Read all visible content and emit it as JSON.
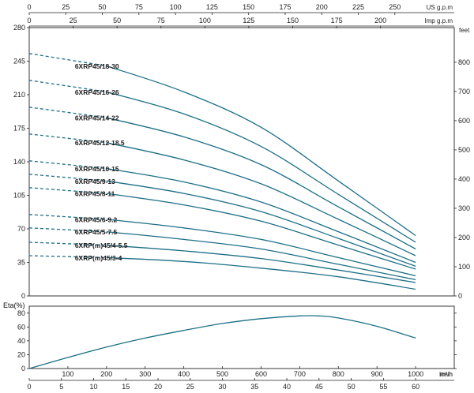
{
  "chart_data": [
    {
      "type": "line",
      "name": "head-curves",
      "ylabel_left": "",
      "ylabel_right": "feet",
      "x_unit": "l/min",
      "xlim": [
        0,
        1000
      ],
      "ylim": [
        0,
        280
      ],
      "y_right_lim_feet": [
        0,
        918.6
      ],
      "left_ticks": [
        0,
        35,
        70,
        105,
        140,
        175,
        210,
        245,
        280
      ],
      "right_ticks": [
        0,
        100,
        200,
        300,
        400,
        500,
        600,
        700,
        800
      ],
      "top_axes": [
        {
          "label": "US g.p.m",
          "ticks": [
            0,
            25,
            50,
            75,
            100,
            125,
            150,
            175,
            200,
            225,
            250
          ],
          "lpm_per_unit": 3.785
        },
        {
          "label": "Imp g.p.m",
          "ticks": [
            0,
            25,
            50,
            75,
            100,
            125,
            150,
            175,
            200
          ],
          "lpm_per_unit": 4.546
        }
      ],
      "dashed_until_lpm": 200,
      "series": [
        {
          "name": "6XRP45/18-30",
          "points": [
            [
              0,
              253
            ],
            [
              200,
              240
            ],
            [
              400,
              213
            ],
            [
              600,
              176
            ],
            [
              800,
              120
            ],
            [
              1000,
              63
            ]
          ]
        },
        {
          "name": "6XRP45/16-26",
          "points": [
            [
              0,
              225
            ],
            [
              200,
              213
            ],
            [
              400,
              190
            ],
            [
              600,
              156
            ],
            [
              800,
              106
            ],
            [
              1000,
              56
            ]
          ]
        },
        {
          "name": "6XRP45/14-22",
          "points": [
            [
              0,
              197
            ],
            [
              200,
              186
            ],
            [
              400,
              166
            ],
            [
              600,
              137
            ],
            [
              800,
              93
            ],
            [
              1000,
              49
            ]
          ]
        },
        {
          "name": "6XRP45/12-18.5",
          "points": [
            [
              0,
              169
            ],
            [
              200,
              160
            ],
            [
              400,
              142
            ],
            [
              600,
              117
            ],
            [
              800,
              80
            ],
            [
              1000,
              42
            ]
          ]
        },
        {
          "name": "6XRP45/10-15",
          "points": [
            [
              0,
              141
            ],
            [
              200,
              133
            ],
            [
              400,
              119
            ],
            [
              600,
              98
            ],
            [
              800,
              67
            ],
            [
              1000,
              35
            ]
          ]
        },
        {
          "name": "6XRP45/9-13",
          "points": [
            [
              0,
              127
            ],
            [
              200,
              120
            ],
            [
              400,
              107
            ],
            [
              600,
              88
            ],
            [
              800,
              60
            ],
            [
              1000,
              31
            ]
          ]
        },
        {
          "name": "6XRP45/8-11",
          "points": [
            [
              0,
              113
            ],
            [
              200,
              107
            ],
            [
              400,
              95
            ],
            [
              600,
              78
            ],
            [
              800,
              53
            ],
            [
              1000,
              28
            ]
          ]
        },
        {
          "name": "6XRP45/6-9.2",
          "points": [
            [
              0,
              85
            ],
            [
              200,
              80
            ],
            [
              400,
              71
            ],
            [
              600,
              59
            ],
            [
              800,
              40
            ],
            [
              1000,
              21
            ]
          ]
        },
        {
          "name": "6XRP45/5-7.5",
          "points": [
            [
              0,
              71
            ],
            [
              200,
              67
            ],
            [
              400,
              59
            ],
            [
              600,
              49
            ],
            [
              800,
              33
            ],
            [
              1000,
              17
            ]
          ]
        },
        {
          "name": "6XRP(m)45/4-5.5",
          "points": [
            [
              0,
              56
            ],
            [
              200,
              53
            ],
            [
              400,
              47
            ],
            [
              600,
              39
            ],
            [
              800,
              27
            ],
            [
              1000,
              14
            ]
          ]
        },
        {
          "name": "6XRP(m)45/3-4",
          "points": [
            [
              0,
              42
            ],
            [
              200,
              40
            ],
            [
              400,
              36
            ],
            [
              600,
              29
            ],
            [
              800,
              20
            ],
            [
              1000,
              7
            ]
          ]
        }
      ]
    },
    {
      "type": "line",
      "name": "efficiency-curve",
      "ylabel": "Eta(%)",
      "xlim": [
        0,
        1000
      ],
      "ylim": [
        0,
        90
      ],
      "y_ticks": [
        0,
        20,
        40,
        60,
        80
      ],
      "x_ticks_lpm": [
        100,
        200,
        300,
        400,
        500,
        600,
        700,
        800,
        900,
        1000
      ],
      "x_unit_lpm": "l/min",
      "x_ticks_m3h": [
        0,
        5,
        10,
        15,
        20,
        25,
        30,
        35,
        40,
        45,
        50,
        55,
        60
      ],
      "x_unit_m3h": "m³/h",
      "series": [
        {
          "name": "",
          "points": [
            [
              0,
              0
            ],
            [
              100,
              16
            ],
            [
              200,
              31
            ],
            [
              300,
              44
            ],
            [
              400,
              55
            ],
            [
              500,
              65
            ],
            [
              600,
              72
            ],
            [
              700,
              76
            ],
            [
              750,
              76
            ],
            [
              800,
              73
            ],
            [
              900,
              61
            ],
            [
              1000,
              44
            ]
          ]
        }
      ]
    }
  ],
  "colors": {
    "curve": "#1b6f86",
    "grid": "#d7d7d7",
    "axis": "#222222"
  }
}
